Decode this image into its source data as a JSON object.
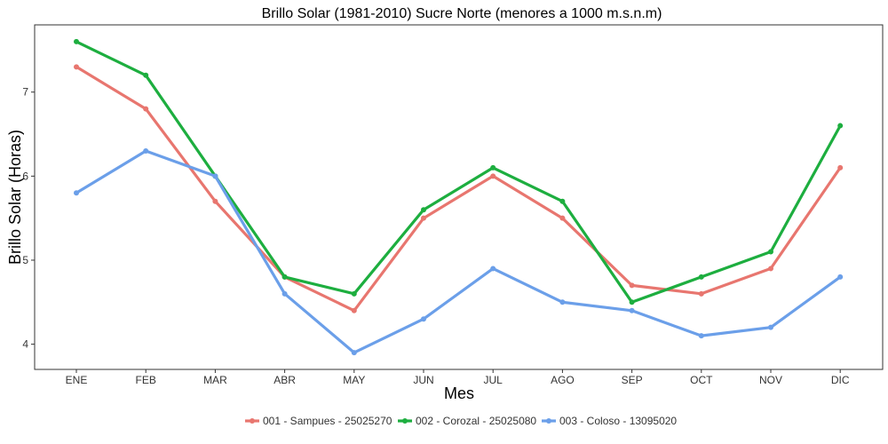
{
  "chart_data": {
    "type": "line",
    "title": "Brillo Solar (1981-2010) Sucre Norte (menores a 1000 m.s.n.m)",
    "xlabel": "Mes",
    "ylabel": "Brillo Solar (Horas)",
    "categories": [
      "ENE",
      "FEB",
      "MAR",
      "ABR",
      "MAY",
      "JUN",
      "JUL",
      "AGO",
      "SEP",
      "OCT",
      "NOV",
      "DIC"
    ],
    "y_ticks": [
      "4",
      "5",
      "6",
      "7"
    ],
    "ylim": [
      3.7,
      7.8
    ],
    "grid": false,
    "legend_position": "bottom",
    "series": [
      {
        "name": "001 - Sampues - 25025270",
        "color": "#E8766F",
        "values": [
          7.3,
          6.8,
          5.7,
          4.8,
          4.4,
          5.5,
          6.0,
          5.5,
          4.7,
          4.6,
          4.9,
          6.1
        ]
      },
      {
        "name": "002 - Corozal - 25025080",
        "color": "#1DAE3F",
        "values": [
          7.6,
          7.2,
          6.0,
          4.8,
          4.6,
          5.6,
          6.1,
          5.7,
          4.5,
          4.8,
          5.1,
          6.6
        ]
      },
      {
        "name": "003 - Coloso - 13095020",
        "color": "#6B9FE9",
        "values": [
          5.8,
          6.3,
          6.0,
          4.6,
          3.9,
          4.3,
          4.9,
          4.5,
          4.4,
          4.1,
          4.2,
          4.8
        ]
      }
    ]
  }
}
